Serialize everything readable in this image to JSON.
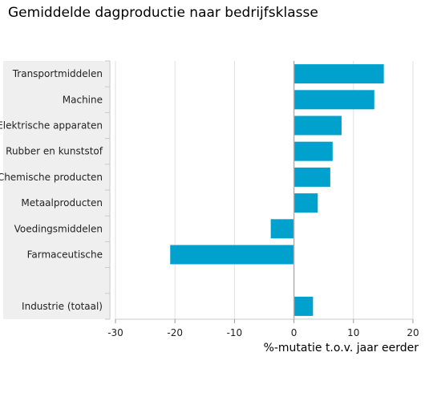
{
  "chart_data": {
    "type": "bar",
    "orientation": "horizontal",
    "title": "Gemiddelde dagproductie naar bedrijfsklasse",
    "xlabel": "%-mutatie t.o.v. jaar eerder",
    "ylabel": "",
    "xlim": [
      -30,
      20
    ],
    "xticks": [
      -30,
      -20,
      -10,
      0,
      10,
      20
    ],
    "grid": true,
    "categories": [
      "Transportmiddelen",
      "Machine",
      "Elektrische apparaten",
      "Rubber en kunststof",
      "Chemische producten",
      "Metaalproducten",
      "Voedingsmiddelen",
      "Farmaceutische",
      "",
      "Industrie (totaal)"
    ],
    "values": [
      15.1,
      13.5,
      8.0,
      6.5,
      6.1,
      4.0,
      -3.9,
      -20.8,
      null,
      3.2
    ],
    "bar_color": "#00a1cd",
    "label_panel_color": "#efefef"
  }
}
